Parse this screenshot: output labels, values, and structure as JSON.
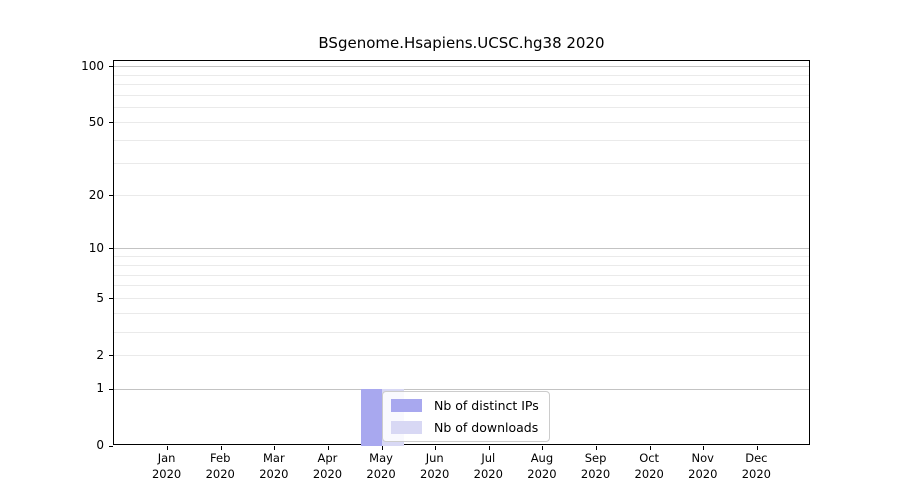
{
  "title": "BSgenome.Hsapiens.UCSC.hg38 2020",
  "colors": {
    "distinct_ips": "#a8a8ef",
    "downloads": "#d8d8f4",
    "grid_major": "#c3c3c3",
    "grid_minor": "#eaeaea",
    "axis": "#000000",
    "legend_border": "#cccccc"
  },
  "legend": {
    "items": [
      {
        "id": "distinct_ips",
        "label": "Nb of distinct IPs"
      },
      {
        "id": "downloads",
        "label": "Nb of downloads"
      }
    ]
  },
  "chart_data": {
    "type": "bar",
    "title": "BSgenome.Hsapiens.UCSC.hg38 2020",
    "categories": [
      "Jan 2020",
      "Feb 2020",
      "Mar 2020",
      "Apr 2020",
      "May 2020",
      "Jun 2020",
      "Jul 2020",
      "Aug 2020",
      "Sep 2020",
      "Oct 2020",
      "Nov 2020",
      "Dec 2020"
    ],
    "series": [
      {
        "name": "Nb of distinct IPs",
        "color": "#a8a8ef",
        "values": [
          0,
          0,
          0,
          0,
          1,
          0,
          0,
          0,
          0,
          0,
          0,
          0
        ]
      },
      {
        "name": "Nb of downloads",
        "color": "#d8d8f4",
        "values": [
          0,
          0,
          0,
          0,
          1,
          0,
          0,
          0,
          0,
          0,
          0,
          0
        ]
      }
    ],
    "xlabel": "",
    "ylabel": "",
    "yscale": "log1p",
    "ylim": [
      0,
      107
    ],
    "yticks": [
      0,
      1,
      2,
      5,
      10,
      20,
      50,
      100
    ],
    "yticks_major": [
      1,
      10,
      100
    ],
    "ygrid_minor": [
      3,
      4,
      6,
      7,
      8,
      9,
      30,
      40,
      60,
      70,
      80,
      90
    ],
    "grid": true,
    "legend_position": "inside bottom, left of center"
  }
}
